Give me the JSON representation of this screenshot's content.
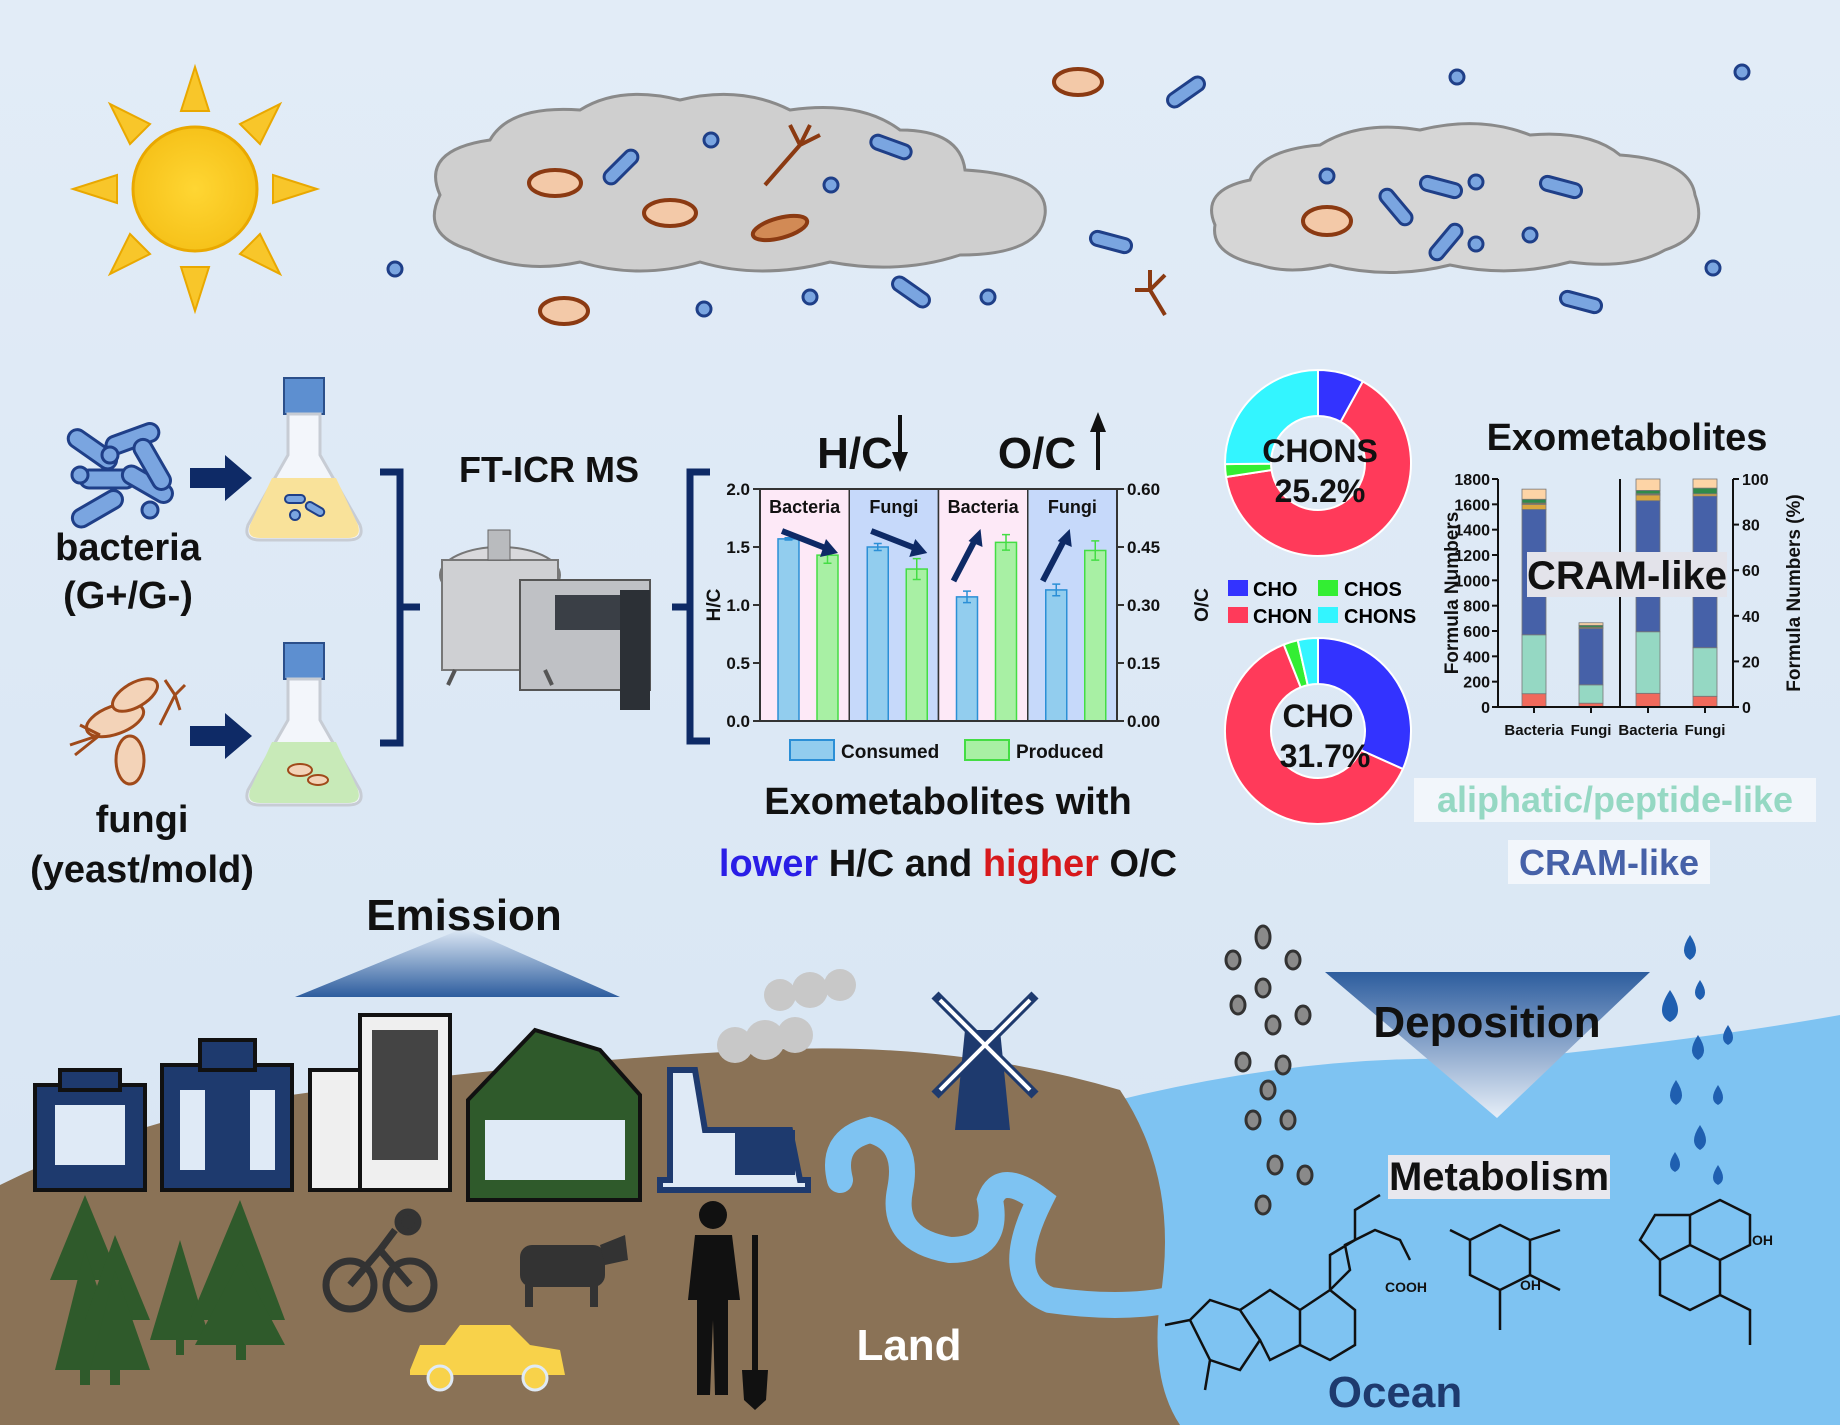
{
  "left": {
    "bacteria_label": "bacteria",
    "bacteria_sub": "(G+/G-)",
    "fungi_label": "fungi",
    "fungi_sub": "(yeast/mold)",
    "instrument_label": "FT-ICR MS"
  },
  "ratio_chart": {
    "hc_title": "H/C",
    "oc_title": "O/C",
    "summary_line1": "Exometabolites with",
    "summary_lower": "lower",
    "summary_mid": " H/C and ",
    "summary_higher": "higher",
    "summary_end": " O/C",
    "colors": {
      "lower": "#2a1ee6",
      "higher": "#d7191c"
    }
  },
  "donuts": {
    "top_center": [
      "CHONS",
      "25.2%"
    ],
    "bottom_center": [
      "CHO",
      "31.7%"
    ],
    "legend": [
      "CHO",
      "CHOS",
      "CHON",
      "CHONS"
    ]
  },
  "stacked": {
    "title": "Exometabolites",
    "overlay": "CRAM-like",
    "label_aliphatic": "aliphatic/peptide-like",
    "label_cram": "CRAM-like"
  },
  "scene": {
    "emission": "Emission",
    "deposition": "Deposition",
    "metabolism": "Metabolism",
    "land": "Land",
    "ocean": "Ocean",
    "cooh": "COOH",
    "oh": "OH"
  },
  "chart_data": [
    {
      "type": "bar",
      "title": "",
      "panels": [
        "Bacteria",
        "Fungi",
        "Bacteria",
        "Fungi"
      ],
      "series": [
        {
          "name": "Consumed",
          "color": "#92cdee",
          "values": [
            1.57,
            1.5,
            0.321,
            0.339
          ],
          "errors": [
            0.01,
            0.03,
            0.015,
            0.015
          ]
        },
        {
          "name": "Produced",
          "color": "#a8f0a4",
          "values": [
            1.43,
            1.31,
            0.462,
            0.441
          ],
          "errors": [
            0.07,
            0.09,
            0.02,
            0.025
          ]
        }
      ],
      "metric": [
        "H/C",
        "H/C",
        "O/C",
        "O/C"
      ],
      "ylabel_left": "H/C",
      "ylim_left": [
        0,
        2.0
      ],
      "yticks_left": [
        "0.0",
        "0.5",
        "1.0",
        "1.5",
        "2.0"
      ],
      "ylabel_right": "O/C",
      "ylim_right": [
        0,
        0.6
      ],
      "yticks_right": [
        "0.00",
        "0.15",
        "0.30",
        "0.45",
        "0.60"
      ],
      "panel_colors": [
        "#fde9f7",
        "#c6d9fa",
        "#fde9f7",
        "#c6d9fa"
      ],
      "legend": "bottom"
    },
    {
      "type": "pie",
      "donut": true,
      "categories": [
        "CHO",
        "CHON",
        "CHOS",
        "CHONS"
      ],
      "values": [
        8.0,
        64.6,
        2.2,
        25.2
      ],
      "colors": [
        "#3333ff",
        "#ff3a5a",
        "#33ee33",
        "#33f5ff"
      ]
    },
    {
      "type": "pie",
      "donut": true,
      "categories": [
        "CHO",
        "CHON",
        "CHOS",
        "CHONS"
      ],
      "values": [
        31.7,
        62.3,
        2.5,
        3.5
      ],
      "colors": [
        "#3333ff",
        "#ff3a5a",
        "#33ee33",
        "#33f5ff"
      ]
    },
    {
      "type": "bar",
      "stacked": true,
      "categories": [
        "Bacteria",
        "Fungi",
        "Bacteria",
        "Fungi"
      ],
      "ylabel_left": "Formula Numbers",
      "ylim_left": [
        0,
        1800
      ],
      "yticks_left": [
        "0",
        "200",
        "400",
        "600",
        "800",
        "1000",
        "1200",
        "1400",
        "1600",
        "1800"
      ],
      "ylabel_right": "Formula Numbers (%)",
      "ylim_right": [
        0,
        100
      ],
      "yticks_right": [
        "0",
        "20",
        "40",
        "60",
        "80",
        "100"
      ],
      "axis": [
        "left",
        "left",
        "right",
        "right"
      ],
      "segment_colors": [
        "#f06a5c",
        "#95d8c3",
        "#4661a8",
        "#d9a640",
        "#8a6a3a",
        "#2f8a4a",
        "#fdd4a6"
      ],
      "stacks": [
        [
          105,
          465,
          990,
          40,
          10,
          30,
          80
        ],
        [
          30,
          145,
          445,
          0,
          10,
          15,
          20
        ],
        [
          6,
          27,
          57.5,
          2.5,
          0.5,
          1.5,
          5
        ],
        [
          4.7,
          21.3,
          66.5,
          1,
          0,
          2.5,
          4
        ]
      ]
    }
  ]
}
